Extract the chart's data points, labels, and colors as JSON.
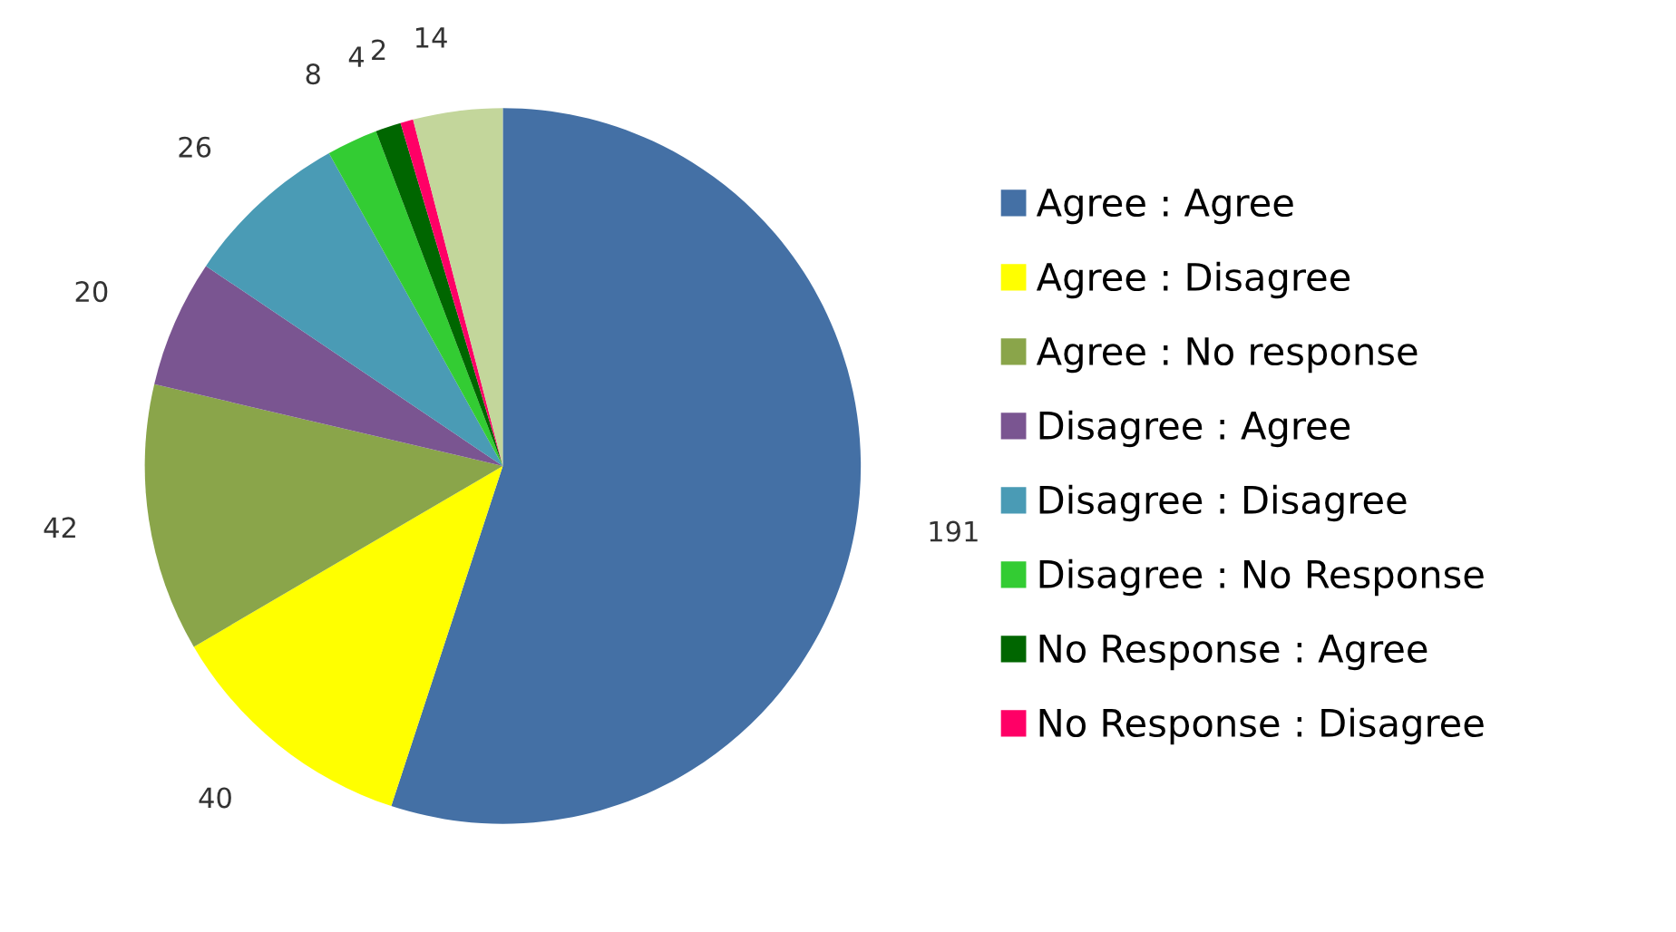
{
  "chart_data": {
    "type": "pie",
    "categories": [
      "Agree : Agree",
      "Agree : Disagree",
      "Agree : No response",
      "Disagree : Agree",
      "Disagree : Disagree",
      "Disagree : No Response",
      "No Response : Agree",
      "No Response : Disagree",
      null
    ],
    "values": [
      191,
      40,
      42,
      20,
      26,
      8,
      4,
      2,
      14
    ],
    "colors": [
      "#4470a5",
      "#ffff00",
      "#8aa54a",
      "#7a5591",
      "#4a9bb5",
      "#33cc33",
      "#006600",
      "#ff0066",
      "#c3d69b"
    ],
    "data_labels": true,
    "legend": "right"
  }
}
